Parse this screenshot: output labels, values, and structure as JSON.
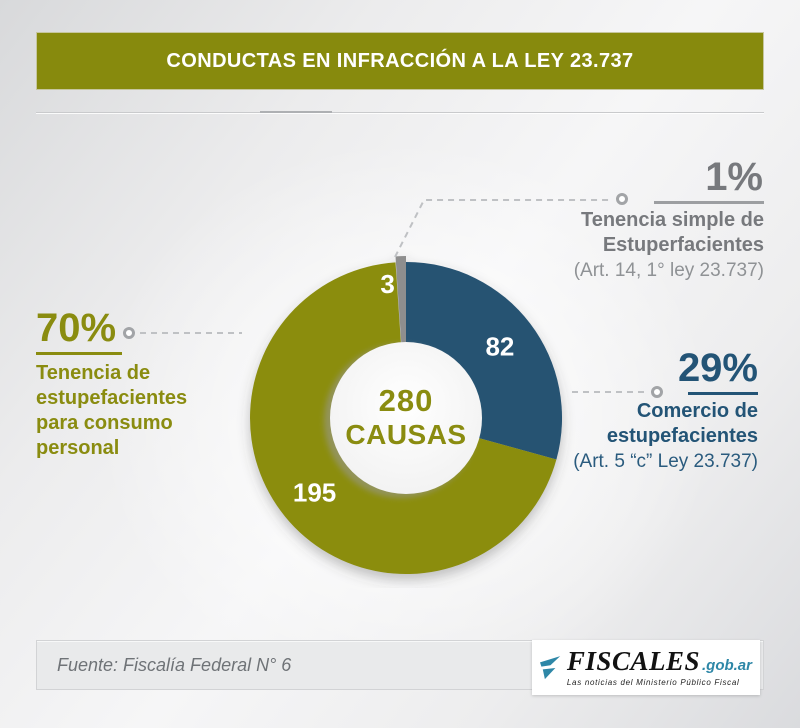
{
  "colors": {
    "olive": "#8A8C10",
    "blue": "#235476",
    "teal": "#2E87A7"
  },
  "header": {
    "title": "CONDUCTAS EN INFRACCIÓN A LA LEY 23.737"
  },
  "chart_data": {
    "type": "pie",
    "title": "Conductas en infracción a la ley 23.737",
    "total": 280,
    "center_value": "280",
    "center_label": "CAUSAS",
    "start_angle_deg": 0,
    "grid": false,
    "legend_position": "callouts",
    "slices": [
      {
        "label": "Comercio de estupefacientes",
        "note": "(Art. 5 “c” Ley 23.737)",
        "value": 82,
        "percent": "29%",
        "color": "#255272"
      },
      {
        "label": "Tenencia de estupefacientes para consumo personal",
        "note": "",
        "value": 195,
        "percent": "70%",
        "color": "#8B8D10"
      },
      {
        "label": "Tenencia simple de Estuperfacientes",
        "note": "(Art. 14, 1° ley 23.737)",
        "value": 3,
        "percent": "1%",
        "color": "#8E8E8E",
        "explode": [
          0,
          -6
        ],
        "label_r": 132,
        "label_dx": -14,
        "label_dy": 4
      }
    ]
  },
  "callouts": {
    "left": {
      "percent": "70%",
      "lines": [
        "Tenencia de",
        "estupefacientes",
        "para consumo",
        "personal"
      ]
    },
    "top_right": {
      "percent": "1%",
      "lines": [
        "Tenencia simple de",
        "Estuperfacientes"
      ],
      "note": "(Art. 14, 1° ley 23.737)"
    },
    "right": {
      "percent": "29%",
      "lines": [
        "Comercio de",
        "estupefacientes"
      ],
      "note": "(Art. 5 “c” Ley 23.737)"
    }
  },
  "footer": {
    "source": "Fuente: Fiscalía Federal N° 6"
  },
  "logo": {
    "brand": "FISCALES",
    "domain": ".gob.ar",
    "tagline": "Las noticias del Ministerio Público Fiscal"
  }
}
